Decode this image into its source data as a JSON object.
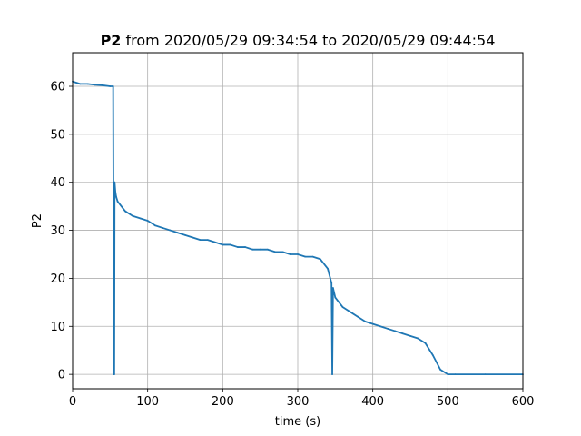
{
  "chart_data": {
    "type": "line",
    "title_bold": "P2",
    "title_rest": " from 2020/05/29 09:34:54 to 2020/05/29 09:44:54",
    "xlabel": "time (s)",
    "ylabel": "P2",
    "xlim": [
      0,
      600
    ],
    "ylim": [
      -3,
      67
    ],
    "xticks": [
      0,
      100,
      200,
      300,
      400,
      500,
      600
    ],
    "yticks": [
      0,
      10,
      20,
      30,
      40,
      50,
      60
    ],
    "grid": true,
    "series_color": "#1f77b4",
    "series": [
      {
        "x": [
          0,
          10,
          20,
          30,
          40,
          50,
          54,
          55,
          55.5,
          56,
          57,
          58,
          60,
          70,
          80,
          90,
          100,
          110,
          120,
          130,
          140,
          150,
          160,
          170,
          180,
          190,
          200,
          210,
          220,
          230,
          240,
          250,
          260,
          270,
          280,
          290,
          300,
          310,
          320,
          330,
          340,
          345,
          346,
          347,
          350,
          360,
          370,
          380,
          390,
          400,
          410,
          420,
          430,
          440,
          450,
          460,
          470,
          480,
          490,
          500,
          510,
          550,
          600
        ],
        "y": [
          61,
          60.5,
          60.5,
          60.3,
          60.2,
          60,
          60,
          0,
          0,
          40,
          38,
          37,
          36,
          34,
          33,
          32.5,
          32,
          31,
          30.5,
          30,
          29.5,
          29,
          28.5,
          28,
          28,
          27.5,
          27,
          27,
          26.5,
          26.5,
          26,
          26,
          26,
          25.5,
          25.5,
          25,
          25,
          24.5,
          24.5,
          24,
          22,
          19,
          0,
          18,
          16,
          14,
          13,
          12,
          11,
          10.5,
          10,
          9.5,
          9,
          8.5,
          8,
          7.5,
          6.5,
          4,
          1,
          0,
          0,
          0,
          0
        ]
      }
    ]
  }
}
